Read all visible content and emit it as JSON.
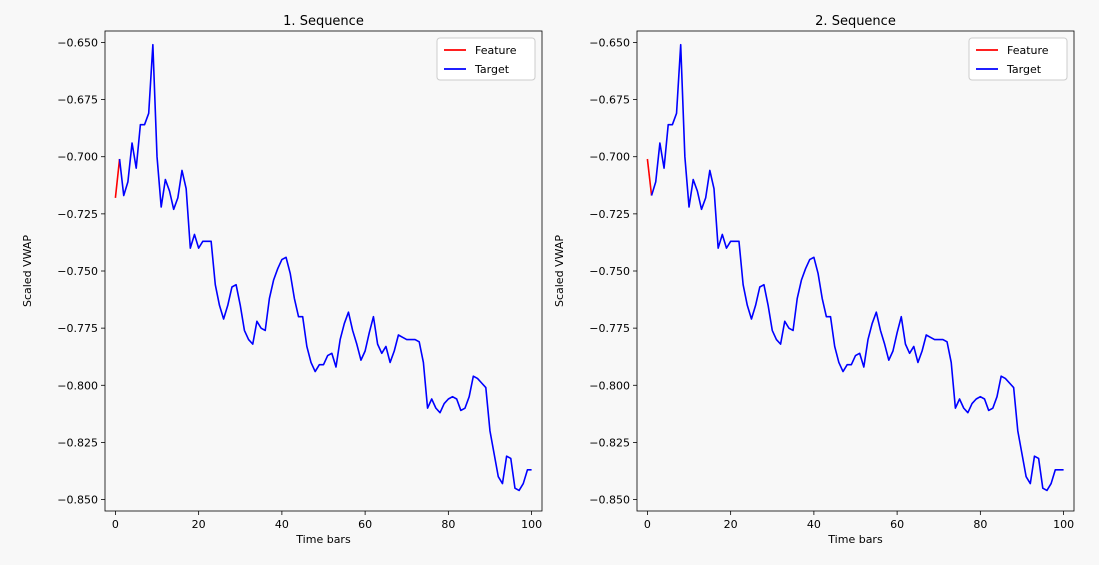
{
  "chart_data": [
    {
      "type": "line",
      "title": "1. Sequence",
      "xlabel": "Time bars",
      "ylabel": "Scaled VWAP",
      "xlim": [
        -2.5,
        102.5
      ],
      "ylim": [
        -0.855,
        -0.645
      ],
      "xticks": [
        0,
        20,
        40,
        60,
        80,
        100
      ],
      "xtick_labels": [
        "0",
        "20",
        "40",
        "60",
        "80",
        "100"
      ],
      "yticks": [
        -0.85,
        -0.825,
        -0.8,
        -0.775,
        -0.75,
        -0.725,
        -0.7,
        -0.675,
        -0.65
      ],
      "ytick_labels": [
        "−0.850",
        "−0.825",
        "−0.800",
        "−0.775",
        "−0.750",
        "−0.725",
        "−0.700",
        "−0.675",
        "−0.650"
      ],
      "grid": false,
      "legend": "top-right",
      "series": [
        {
          "name": "Feature",
          "color": "#ff0000",
          "x": [
            0,
            1
          ],
          "y": [
            -0.718,
            -0.701
          ]
        },
        {
          "name": "Target",
          "color": "#0000ff",
          "x": [
            1,
            2,
            3,
            4,
            5,
            6,
            7,
            8,
            9,
            10,
            11,
            12,
            13,
            14,
            15,
            16,
            17,
            18,
            19,
            20,
            21,
            22,
            23,
            24,
            25,
            26,
            27,
            28,
            29,
            30,
            31,
            32,
            33,
            34,
            35,
            36,
            37,
            38,
            39,
            40,
            41,
            42,
            43,
            44,
            45,
            46,
            47,
            48,
            49,
            50,
            51,
            52,
            53,
            54,
            55,
            56,
            57,
            58,
            59,
            60,
            61,
            62,
            63,
            64,
            65,
            66,
            67,
            68,
            69,
            70,
            71,
            72,
            73,
            74,
            75,
            76,
            77,
            78,
            79,
            80,
            81,
            82,
            83,
            84,
            85,
            86,
            87,
            88,
            89,
            90,
            91,
            92,
            93,
            94,
            95,
            96,
            97,
            98,
            99,
            100
          ],
          "y": [
            -0.701,
            -0.717,
            -0.711,
            -0.694,
            -0.705,
            -0.686,
            -0.686,
            -0.681,
            -0.651,
            -0.7,
            -0.722,
            -0.71,
            -0.715,
            -0.723,
            -0.718,
            -0.706,
            -0.714,
            -0.74,
            -0.734,
            -0.74,
            -0.737,
            -0.737,
            -0.737,
            -0.756,
            -0.765,
            -0.771,
            -0.765,
            -0.757,
            -0.756,
            -0.765,
            -0.776,
            -0.78,
            -0.782,
            -0.772,
            -0.775,
            -0.776,
            -0.762,
            -0.754,
            -0.749,
            -0.745,
            -0.744,
            -0.751,
            -0.762,
            -0.77,
            -0.77,
            -0.783,
            -0.79,
            -0.794,
            -0.791,
            -0.791,
            -0.787,
            -0.786,
            -0.792,
            -0.78,
            -0.773,
            -0.768,
            -0.776,
            -0.782,
            -0.789,
            -0.785,
            -0.777,
            -0.77,
            -0.782,
            -0.786,
            -0.783,
            -0.79,
            -0.785,
            -0.778,
            -0.779,
            -0.78,
            -0.78,
            -0.78,
            -0.781,
            -0.79,
            -0.81,
            -0.806,
            -0.81,
            -0.812,
            -0.808,
            -0.806,
            -0.805,
            -0.806,
            -0.811,
            -0.81,
            -0.805,
            -0.796,
            -0.797,
            -0.799,
            -0.801,
            -0.82,
            -0.83,
            -0.84,
            -0.843,
            -0.831,
            -0.832,
            -0.845,
            -0.846,
            -0.843,
            -0.837,
            -0.837
          ]
        }
      ]
    },
    {
      "type": "line",
      "title": "2. Sequence",
      "xlabel": "Time bars",
      "ylabel": "Scaled VWAP",
      "xlim": [
        -2.5,
        102.5
      ],
      "ylim": [
        -0.855,
        -0.645
      ],
      "xticks": [
        0,
        20,
        40,
        60,
        80,
        100
      ],
      "xtick_labels": [
        "0",
        "20",
        "40",
        "60",
        "80",
        "100"
      ],
      "yticks": [
        -0.85,
        -0.825,
        -0.8,
        -0.775,
        -0.75,
        -0.725,
        -0.7,
        -0.675,
        -0.65
      ],
      "ytick_labels": [
        "−0.850",
        "−0.825",
        "−0.800",
        "−0.775",
        "−0.750",
        "−0.725",
        "−0.700",
        "−0.675",
        "−0.650"
      ],
      "grid": false,
      "legend": "top-right",
      "series": [
        {
          "name": "Feature",
          "color": "#ff0000",
          "x": [
            0,
            1
          ],
          "y": [
            -0.701,
            -0.717
          ]
        },
        {
          "name": "Target",
          "color": "#0000ff",
          "x": [
            1,
            2,
            3,
            4,
            5,
            6,
            7,
            8,
            9,
            10,
            11,
            12,
            13,
            14,
            15,
            16,
            17,
            18,
            19,
            20,
            21,
            22,
            23,
            24,
            25,
            26,
            27,
            28,
            29,
            30,
            31,
            32,
            33,
            34,
            35,
            36,
            37,
            38,
            39,
            40,
            41,
            42,
            43,
            44,
            45,
            46,
            47,
            48,
            49,
            50,
            51,
            52,
            53,
            54,
            55,
            56,
            57,
            58,
            59,
            60,
            61,
            62,
            63,
            64,
            65,
            66,
            67,
            68,
            69,
            70,
            71,
            72,
            73,
            74,
            75,
            76,
            77,
            78,
            79,
            80,
            81,
            82,
            83,
            84,
            85,
            86,
            87,
            88,
            89,
            90,
            91,
            92,
            93,
            94,
            95,
            96,
            97,
            98,
            99,
            100
          ],
          "y": [
            -0.717,
            -0.711,
            -0.694,
            -0.705,
            -0.686,
            -0.686,
            -0.681,
            -0.651,
            -0.7,
            -0.722,
            -0.71,
            -0.715,
            -0.723,
            -0.718,
            -0.706,
            -0.714,
            -0.74,
            -0.734,
            -0.74,
            -0.737,
            -0.737,
            -0.737,
            -0.756,
            -0.765,
            -0.771,
            -0.765,
            -0.757,
            -0.756,
            -0.765,
            -0.776,
            -0.78,
            -0.782,
            -0.772,
            -0.775,
            -0.776,
            -0.762,
            -0.754,
            -0.749,
            -0.745,
            -0.744,
            -0.751,
            -0.762,
            -0.77,
            -0.77,
            -0.783,
            -0.79,
            -0.794,
            -0.791,
            -0.791,
            -0.787,
            -0.786,
            -0.792,
            -0.78,
            -0.773,
            -0.768,
            -0.776,
            -0.782,
            -0.789,
            -0.785,
            -0.777,
            -0.77,
            -0.782,
            -0.786,
            -0.783,
            -0.79,
            -0.785,
            -0.778,
            -0.779,
            -0.78,
            -0.78,
            -0.78,
            -0.781,
            -0.79,
            -0.81,
            -0.806,
            -0.81,
            -0.812,
            -0.808,
            -0.806,
            -0.805,
            -0.806,
            -0.811,
            -0.81,
            -0.805,
            -0.796,
            -0.797,
            -0.799,
            -0.801,
            -0.82,
            -0.83,
            -0.84,
            -0.843,
            -0.831,
            -0.832,
            -0.845,
            -0.846,
            -0.843,
            -0.837,
            -0.837,
            -0.837
          ]
        }
      ]
    }
  ]
}
